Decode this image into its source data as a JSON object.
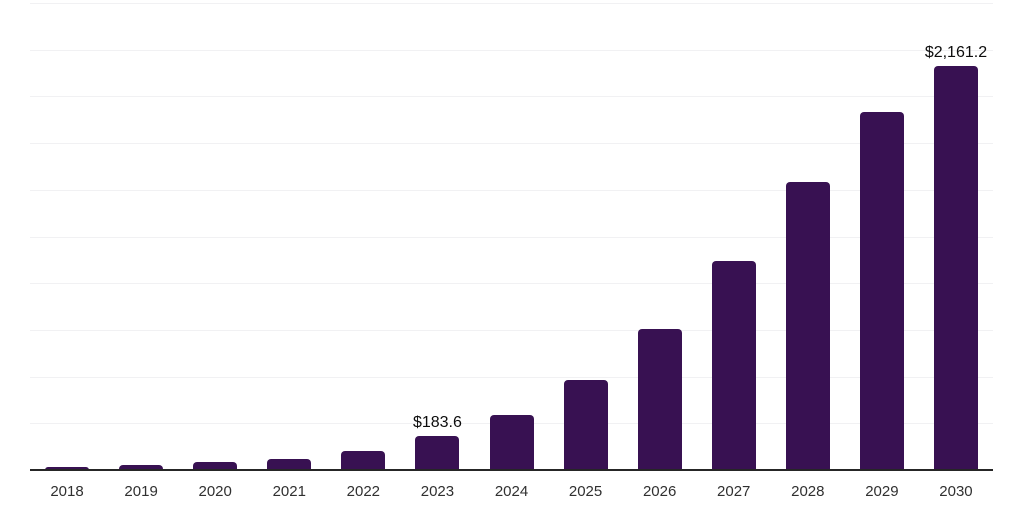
{
  "chart_data": {
    "type": "bar",
    "title": "",
    "xlabel": "",
    "ylabel": "",
    "categories": [
      "2018",
      "2019",
      "2020",
      "2021",
      "2022",
      "2023",
      "2024",
      "2025",
      "2026",
      "2027",
      "2028",
      "2029",
      "2030"
    ],
    "values": [
      15,
      27,
      41,
      60,
      100,
      183.6,
      295,
      480,
      755,
      1120,
      1540,
      1915,
      2161.2
    ],
    "labeled_points": [
      {
        "category": "2023",
        "label": "$183.6"
      },
      {
        "category": "2030",
        "label": "$2,161.2"
      }
    ],
    "ylim": [
      0,
      2500
    ],
    "gridline_step": 250,
    "grid": "horizontal-only",
    "y_axis_tick_labels": "none",
    "legend_position": "none",
    "colors": {
      "bar": "#381152",
      "axis_line": "#262626",
      "gridline": "#f1f1f3",
      "x_tick_label": "#303030",
      "value_label": "#0d0d0d",
      "background": "#ffffff"
    }
  }
}
